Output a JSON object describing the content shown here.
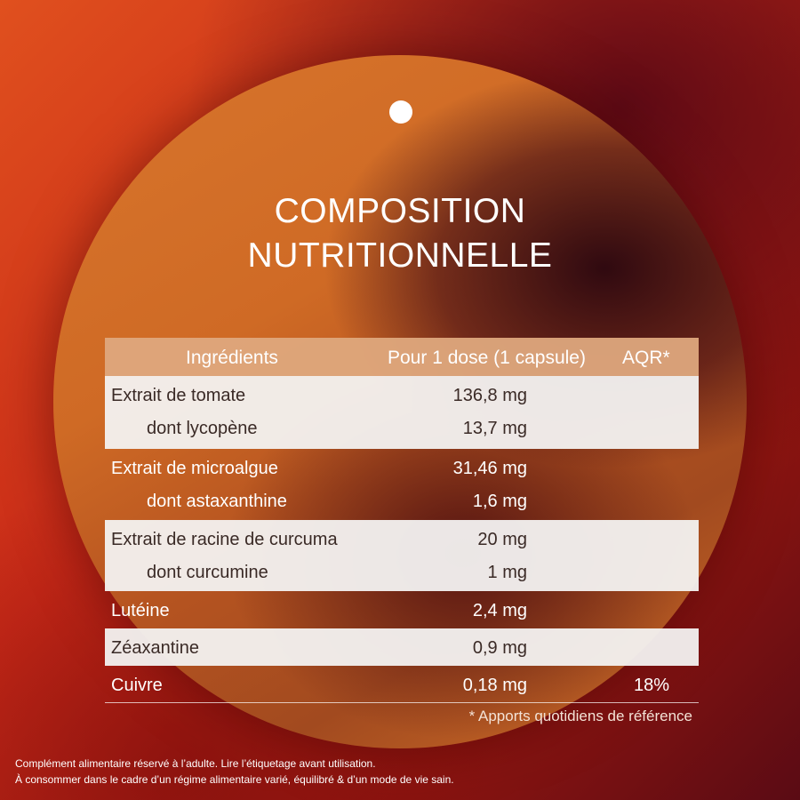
{
  "title": {
    "line1": "COMPOSITION",
    "line2": "NUTRITIONNELLE"
  },
  "table": {
    "headers": {
      "ingredients": "Ingrédients",
      "dose": "Pour 1 dose (1 capsule)",
      "aqr": "AQR*"
    },
    "rows": {
      "tomate": {
        "name": "Extrait de tomate",
        "value": "136,8 mg"
      },
      "lycopene": {
        "name": "dont lycopène",
        "value": "13,7 mg"
      },
      "microalgue": {
        "name": "Extrait de microalgue",
        "value": "31,46 mg"
      },
      "astaxanthine": {
        "name": "dont astaxanthine",
        "value": "1,6 mg"
      },
      "curcuma": {
        "name": "Extrait de racine de curcuma",
        "value": "20 mg"
      },
      "curcumine": {
        "name": "dont curcumine",
        "value": "1 mg"
      },
      "luteine": {
        "name": "Lutéine",
        "value": "2,4 mg"
      },
      "zeaxantine": {
        "name": "Zéaxantine",
        "value": "0,9 mg"
      },
      "cuivre": {
        "name": "Cuivre",
        "value": "0,18 mg",
        "aqr": "18%"
      }
    },
    "footnote": "* Apports quotidiens de référence"
  },
  "disclaimer": {
    "line1": "Complément alimentaire réservé à l’adulte. Lire l’étiquetage avant utilisation.",
    "line2": "À consommer dans le cadre d’un régime alimentaire varié, équilibré & d’un mode de vie sain."
  }
}
